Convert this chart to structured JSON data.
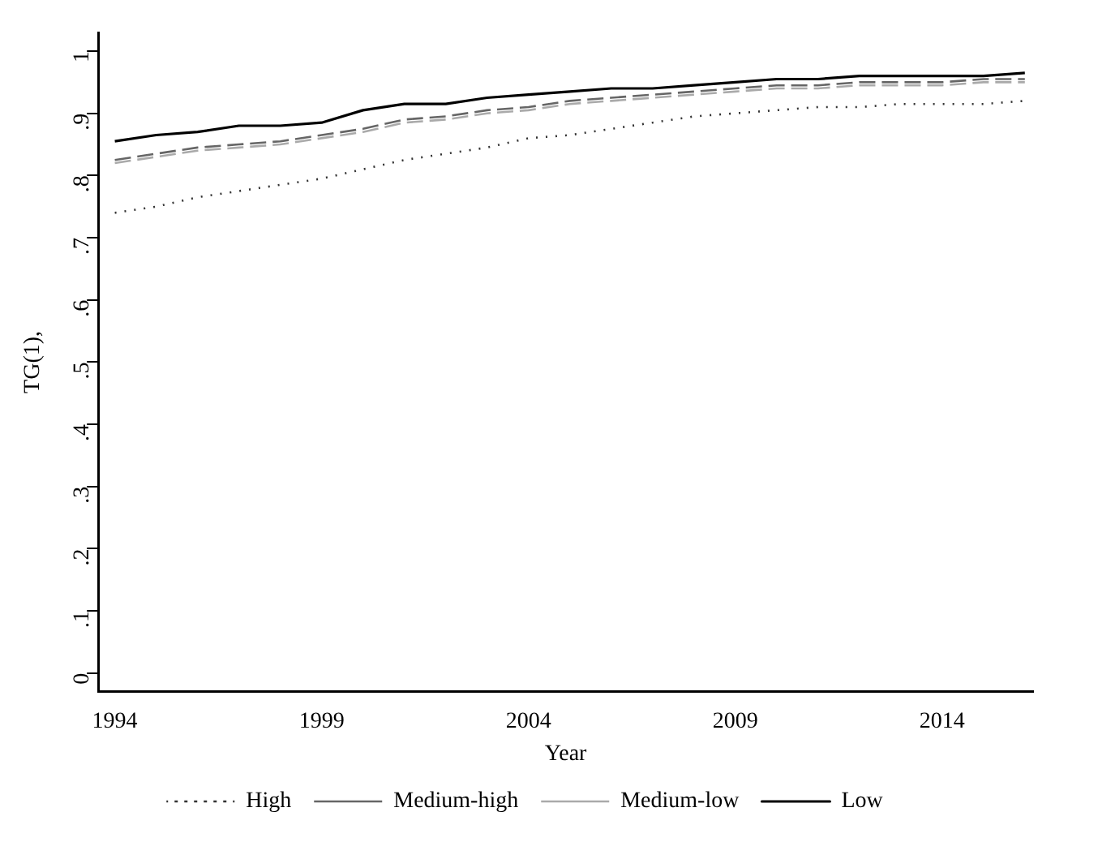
{
  "chart_data": {
    "type": "line",
    "xlabel": "Year",
    "ylabel": "TG(1),",
    "x": [
      1994,
      1995,
      1996,
      1997,
      1998,
      1999,
      2000,
      2001,
      2002,
      2003,
      2004,
      2005,
      2006,
      2007,
      2008,
      2009,
      2010,
      2011,
      2012,
      2013,
      2014,
      2015,
      2016
    ],
    "series": [
      {
        "name": "High",
        "color": "#333333",
        "line_style": "dotted",
        "values": [
          0.74,
          0.75,
          0.765,
          0.775,
          0.785,
          0.795,
          0.81,
          0.825,
          0.835,
          0.845,
          0.86,
          0.865,
          0.875,
          0.885,
          0.895,
          0.9,
          0.905,
          0.91,
          0.91,
          0.915,
          0.915,
          0.915,
          0.92
        ]
      },
      {
        "name": "Medium-high",
        "color": "#666666",
        "line_style": "dashed",
        "values": [
          0.825,
          0.835,
          0.845,
          0.85,
          0.855,
          0.865,
          0.875,
          0.89,
          0.895,
          0.905,
          0.91,
          0.92,
          0.925,
          0.93,
          0.935,
          0.94,
          0.945,
          0.945,
          0.95,
          0.95,
          0.95,
          0.955,
          0.955
        ]
      },
      {
        "name": "Medium-low",
        "color": "#aaaaaa",
        "line_style": "dashed",
        "values": [
          0.82,
          0.83,
          0.84,
          0.845,
          0.85,
          0.86,
          0.87,
          0.885,
          0.89,
          0.9,
          0.905,
          0.915,
          0.92,
          0.925,
          0.93,
          0.935,
          0.94,
          0.94,
          0.945,
          0.945,
          0.945,
          0.95,
          0.95
        ]
      },
      {
        "name": "Low",
        "color": "#000000",
        "line_style": "solid",
        "values": [
          0.855,
          0.865,
          0.87,
          0.88,
          0.88,
          0.885,
          0.905,
          0.915,
          0.915,
          0.925,
          0.93,
          0.935,
          0.94,
          0.94,
          0.945,
          0.95,
          0.955,
          0.955,
          0.96,
          0.96,
          0.96,
          0.96,
          0.965
        ]
      }
    ],
    "xlim": [
      1993.6,
      2016.2
    ],
    "xticks": [
      1994,
      1999,
      2004,
      2009,
      2014
    ],
    "ylim": [
      -0.03,
      1.03
    ],
    "yticks": [
      {
        "value": 0,
        "label": "0"
      },
      {
        "value": 0.1,
        "label": ".1"
      },
      {
        "value": 0.2,
        "label": ".2"
      },
      {
        "value": 0.3,
        "label": ".3"
      },
      {
        "value": 0.4,
        "label": ".4"
      },
      {
        "value": 0.5,
        "label": ".5"
      },
      {
        "value": 0.6,
        "label": ".6"
      },
      {
        "value": 0.7,
        "label": ".7"
      },
      {
        "value": 0.8,
        "label": ".8"
      },
      {
        "value": 0.9,
        "label": ".9"
      },
      {
        "value": 1,
        "label": "1"
      }
    ],
    "grid": false,
    "legend": "bottom",
    "marker": "none"
  }
}
